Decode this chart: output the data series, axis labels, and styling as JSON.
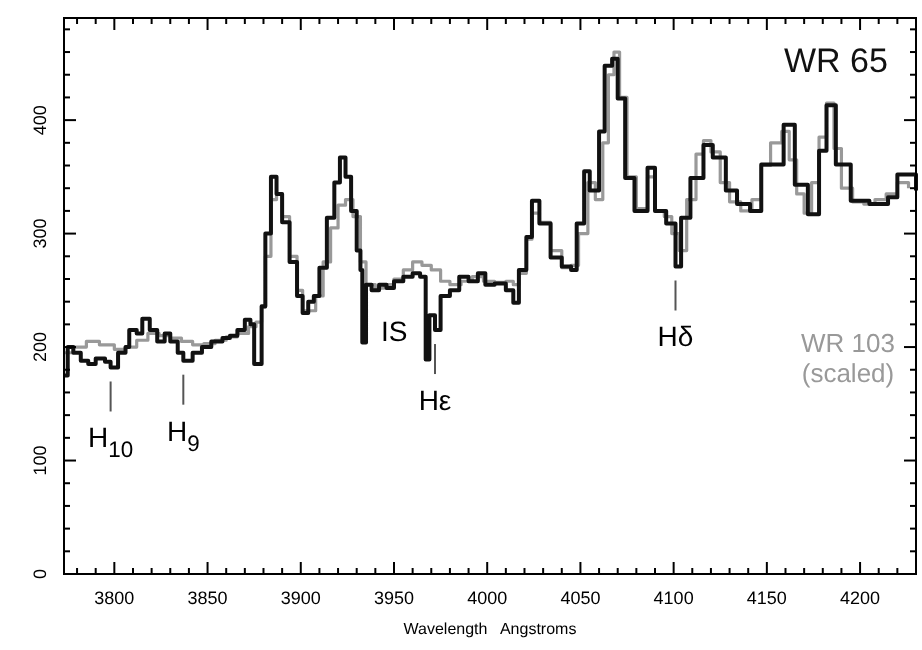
{
  "chart_data": {
    "type": "step",
    "xlabel": "Wavelength   Angstroms",
    "xlim": [
      3773,
      4230
    ],
    "ylim": [
      0,
      490
    ],
    "xticks": [
      {
        "value": 3780,
        "label": null
      },
      {
        "value": 3790,
        "label": null
      },
      3800,
      {
        "value": 3810,
        "label": null
      },
      {
        "value": 3820,
        "label": null
      },
      {
        "value": 3830,
        "label": null
      },
      {
        "value": 3840,
        "label": null
      },
      3850,
      {
        "value": 3860,
        "label": null
      },
      {
        "value": 3870,
        "label": null
      },
      {
        "value": 3880,
        "label": null
      },
      {
        "value": 3890,
        "label": null
      },
      3900,
      {
        "value": 3910,
        "label": null
      },
      {
        "value": 3920,
        "label": null
      },
      {
        "value": 3930,
        "label": null
      },
      {
        "value": 3940,
        "label": null
      },
      3950,
      {
        "value": 3960,
        "label": null
      },
      {
        "value": 3970,
        "label": null
      },
      {
        "value": 3980,
        "label": null
      },
      {
        "value": 3990,
        "label": null
      },
      4000,
      {
        "value": 4010,
        "label": null
      },
      {
        "value": 4020,
        "label": null
      },
      {
        "value": 4030,
        "label": null
      },
      {
        "value": 4040,
        "label": null
      },
      4050,
      {
        "value": 4060,
        "label": null
      },
      {
        "value": 4070,
        "label": null
      },
      {
        "value": 4080,
        "label": null
      },
      {
        "value": 4090,
        "label": null
      },
      4100,
      {
        "value": 4110,
        "label": null
      },
      {
        "value": 4120,
        "label": null
      },
      {
        "value": 4130,
        "label": null
      },
      {
        "value": 4140,
        "label": null
      },
      4150,
      {
        "value": 4160,
        "label": null
      },
      {
        "value": 4170,
        "label": null
      },
      {
        "value": 4180,
        "label": null
      },
      {
        "value": 4190,
        "label": null
      },
      4200,
      {
        "value": 4210,
        "label": null
      },
      {
        "value": 4220,
        "label": null
      }
    ],
    "yticks": [
      0,
      {
        "value": 20,
        "label": null
      },
      {
        "value": 40,
        "label": null
      },
      {
        "value": 60,
        "label": null
      },
      {
        "value": 80,
        "label": null
      },
      100,
      {
        "value": 120,
        "label": null
      },
      {
        "value": 140,
        "label": null
      },
      {
        "value": 160,
        "label": null
      },
      {
        "value": 180,
        "label": null
      },
      200,
      {
        "value": 220,
        "label": null
      },
      {
        "value": 240,
        "label": null
      },
      {
        "value": 260,
        "label": null
      },
      {
        "value": 280,
        "label": null
      },
      300,
      {
        "value": 320,
        "label": null
      },
      {
        "value": 340,
        "label": null
      },
      {
        "value": 360,
        "label": null
      },
      {
        "value": 380,
        "label": null
      },
      400,
      {
        "value": 420,
        "label": null
      },
      {
        "value": 440,
        "label": null
      },
      {
        "value": 460,
        "label": null
      },
      {
        "value": 480,
        "label": null
      }
    ],
    "grid": false,
    "series": [
      {
        "name": "WR 103\n(scaled)",
        "color": "#999999",
        "x": [
          3773,
          3778,
          3785,
          3792,
          3800,
          3806,
          3812,
          3818,
          3824,
          3830,
          3836,
          3842,
          3848,
          3854,
          3860,
          3866,
          3872,
          3876,
          3879,
          3881,
          3884,
          3887,
          3890,
          3894,
          3898,
          3901,
          3904,
          3908,
          3912,
          3916,
          3920,
          3924,
          3928,
          3932,
          3935,
          3940,
          3945,
          3950,
          3955,
          3960,
          3965,
          3970,
          3975,
          3980,
          3986,
          3992,
          3998,
          4004,
          4010,
          4014,
          4017,
          4021,
          4024,
          4028,
          4034,
          4040,
          4045,
          4049,
          4054,
          4058,
          4062,
          4065,
          4068,
          4071,
          4075,
          4080,
          4086,
          4090,
          4095,
          4099,
          4103,
          4107,
          4112,
          4116,
          4120,
          4125,
          4130,
          4136,
          4142,
          4147,
          4152,
          4158,
          4162,
          4166,
          4170,
          4174,
          4178,
          4182,
          4186,
          4190,
          4196,
          4202,
          4208,
          4214,
          4220,
          4226
        ],
        "values": [
          195,
          200,
          205,
          202,
          198,
          200,
          206,
          212,
          210,
          208,
          205,
          202,
          203,
          206,
          209,
          212,
          218,
          222,
          235,
          280,
          330,
          335,
          315,
          280,
          250,
          232,
          232,
          245,
          275,
          305,
          325,
          330,
          315,
          275,
          255,
          252,
          255,
          260,
          268,
          275,
          272,
          268,
          258,
          255,
          258,
          262,
          258,
          257,
          258,
          255,
          265,
          295,
          318,
          310,
          285,
          270,
          272,
          300,
          345,
          330,
          380,
          440,
          460,
          420,
          350,
          322,
          350,
          320,
          315,
          300,
          285,
          330,
          370,
          382,
          372,
          345,
          328,
          320,
          330,
          360,
          380,
          390,
          365,
          335,
          318,
          345,
          385,
          415,
          375,
          340,
          328,
          326,
          330,
          335,
          345,
          340
        ]
      },
      {
        "name": "WR 65",
        "color": "#111111",
        "x": [
          3773,
          3775,
          3778,
          3782,
          3786,
          3790,
          3795,
          3798,
          3802,
          3806,
          3808,
          3812,
          3815,
          3819,
          3823,
          3827,
          3830,
          3834,
          3837,
          3842,
          3847,
          3852,
          3858,
          3862,
          3866,
          3870,
          3873,
          3875,
          3878,
          3879,
          3881,
          3884,
          3887,
          3890,
          3894,
          3898,
          3901,
          3904,
          3907,
          3910,
          3914,
          3918,
          3921,
          3924,
          3927,
          3930,
          3932,
          3933,
          3935,
          3938,
          3942,
          3946,
          3950,
          3955,
          3960,
          3964,
          3967,
          3969,
          3972,
          3975,
          3980,
          3985,
          3990,
          3995,
          3999,
          4004,
          4010,
          4014,
          4017,
          4021,
          4024,
          4028,
          4034,
          4040,
          4045,
          4048,
          4052,
          4055,
          4060,
          4063,
          4067,
          4070,
          4074,
          4079,
          4086,
          4090,
          4096,
          4101,
          4104,
          4109,
          4116,
          4121,
          4128,
          4134,
          4141,
          4147,
          4159,
          4165,
          4172,
          4178,
          4182,
          4187,
          4195,
          4205,
          4215,
          4220,
          4230
        ],
        "values": [
          175,
          200,
          195,
          188,
          185,
          190,
          187,
          182,
          195,
          200,
          215,
          212,
          225,
          215,
          205,
          212,
          205,
          195,
          188,
          195,
          200,
          205,
          208,
          210,
          215,
          224,
          220,
          185,
          185,
          236,
          300,
          350,
          335,
          310,
          275,
          245,
          230,
          240,
          245,
          270,
          314,
          345,
          367,
          350,
          320,
          285,
          268,
          204,
          255,
          250,
          255,
          252,
          258,
          262,
          265,
          262,
          189,
          228,
          215,
          245,
          250,
          262,
          258,
          265,
          255,
          256,
          250,
          239,
          268,
          297,
          329,
          309,
          279,
          271,
          268,
          309,
          355,
          338,
          390,
          448,
          454,
          419,
          349,
          320,
          358,
          320,
          309,
          271,
          314,
          349,
          378,
          367,
          338,
          326,
          320,
          361,
          396,
          343,
          317,
          373,
          413,
          361,
          329,
          326,
          332,
          352,
          338
        ]
      }
    ],
    "annotations": [
      {
        "text": "IS",
        "x": 3933,
        "y": 204
      },
      {
        "text": "H$_{10}$",
        "x": 3798,
        "y": 182
      },
      {
        "text": "H$_{9}$",
        "x": 3837,
        "y": 188
      },
      {
        "text": "Hε",
        "x": 3972,
        "y": 215
      },
      {
        "text": "Hδ",
        "x": 4101,
        "y": 271
      }
    ],
    "tick_labels": "xy"
  }
}
